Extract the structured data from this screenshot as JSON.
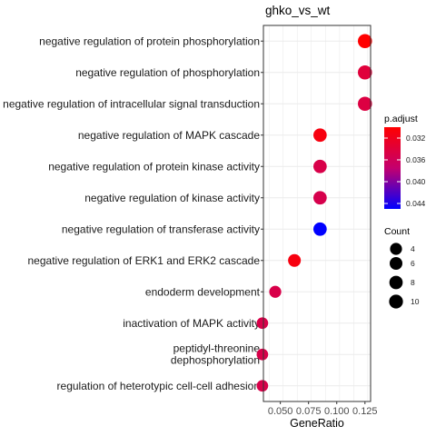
{
  "chart_data": {
    "type": "scatter",
    "title": "ghko_vs_wt",
    "xlabel": "GeneRatio",
    "ylabel": "",
    "xlim": [
      0.035,
      0.13
    ],
    "x_ticks": [
      0.05,
      0.075,
      0.1,
      0.125
    ],
    "x_tick_labels": [
      "0.050",
      "0.075",
      "0.100",
      "0.125"
    ],
    "grid": true,
    "legend_placement": "right",
    "categories": [
      "negative regulation of protein phosphorylation",
      "negative regulation of phosphorylation",
      "negative regulation of intracellular signal transduction",
      "negative regulation of MAPK cascade",
      "negative regulation of protein kinase activity",
      "negative regulation of kinase activity",
      "negative regulation of transferase activity",
      "negative regulation of ERK1 and ERK2 cascade",
      "endoderm development",
      "inactivation of MAPK activity",
      "peptidyl-threonine dephosphorylation",
      "regulation of heterotypic cell-cell adhesion"
    ],
    "points": [
      {
        "category": "negative regulation of protein phosphorylation",
        "gene_ratio": 0.125,
        "count": 11,
        "p_adjust": 0.03
      },
      {
        "category": "negative regulation of phosphorylation",
        "gene_ratio": 0.125,
        "count": 11,
        "p_adjust": 0.034
      },
      {
        "category": "negative regulation of intracellular signal transduction",
        "gene_ratio": 0.125,
        "count": 11,
        "p_adjust": 0.0345
      },
      {
        "category": "negative regulation of MAPK cascade",
        "gene_ratio": 0.0852,
        "count": 8,
        "p_adjust": 0.031
      },
      {
        "category": "negative regulation of protein kinase activity",
        "gene_ratio": 0.0852,
        "count": 8,
        "p_adjust": 0.035
      },
      {
        "category": "negative regulation of kinase activity",
        "gene_ratio": 0.0852,
        "count": 8,
        "p_adjust": 0.0352
      },
      {
        "category": "negative regulation of transferase activity",
        "gene_ratio": 0.0852,
        "count": 8,
        "p_adjust": 0.045
      },
      {
        "category": "negative regulation of ERK1 and ERK2 cascade",
        "gene_ratio": 0.0625,
        "count": 6,
        "p_adjust": 0.031
      },
      {
        "category": "endoderm development",
        "gene_ratio": 0.0455,
        "count": 4,
        "p_adjust": 0.035
      },
      {
        "category": "inactivation of MAPK activity",
        "gene_ratio": 0.0341,
        "count": 3,
        "p_adjust": 0.035
      },
      {
        "category": "peptidyl-threonine dephosphorylation",
        "gene_ratio": 0.0341,
        "count": 3,
        "p_adjust": 0.035
      },
      {
        "category": "regulation of heterotypic cell-cell adhesion",
        "gene_ratio": 0.0341,
        "count": 3,
        "p_adjust": 0.035
      }
    ],
    "color_legend": {
      "title": "p.adjust",
      "range": [
        0.03,
        0.045
      ],
      "ticks": [
        0.032,
        0.036,
        0.04,
        0.044
      ],
      "tick_labels": [
        "0.032",
        "0.036",
        "0.040",
        "0.044"
      ],
      "high_color": "#ff0000",
      "low_color": "#0000ff"
    },
    "size_legend": {
      "title": "Count",
      "values": [
        4,
        6,
        8,
        10
      ],
      "labels": [
        "4",
        "6",
        "8",
        "10"
      ]
    }
  }
}
